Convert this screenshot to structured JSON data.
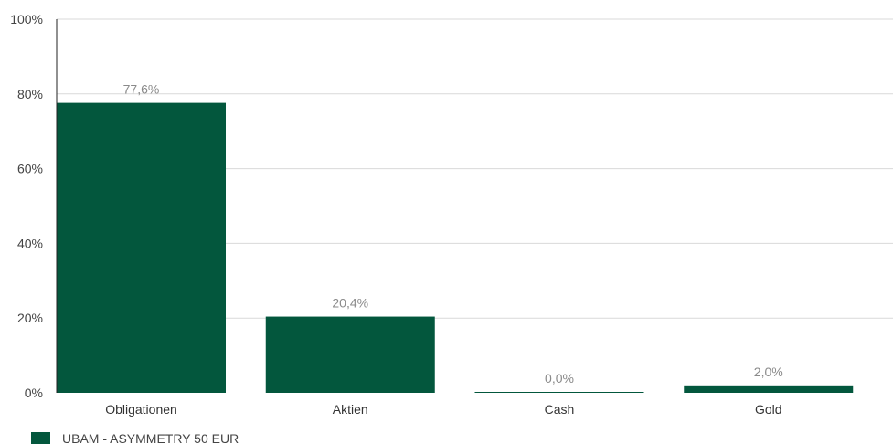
{
  "chart_data": {
    "type": "bar",
    "categories": [
      "Obligationen",
      "Aktien",
      "Cash",
      "Gold"
    ],
    "series": [
      {
        "name": "UBAM - ASYMMETRY 50 EUR",
        "values": [
          77.6,
          20.4,
          0.0,
          2.0
        ],
        "value_labels": [
          "77,6%",
          "20,4%",
          "0,0%",
          "2,0%"
        ],
        "color": "#03573d"
      }
    ],
    "y_ticks": [
      "0%",
      "20%",
      "40%",
      "60%",
      "80%",
      "100%"
    ],
    "ylim": [
      0,
      100
    ],
    "grid": true,
    "legend_position": "bottom-left",
    "colors": {
      "bar": "#03573d",
      "grid": "#d9d9d9",
      "axis": "#222222",
      "data_label": "#8a8a8a"
    }
  }
}
